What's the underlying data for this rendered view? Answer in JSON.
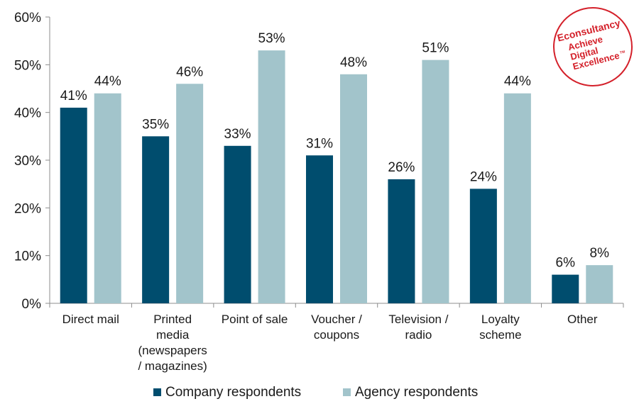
{
  "chart_data": {
    "type": "bar",
    "categories": [
      [
        "Direct mail"
      ],
      [
        "Printed",
        "media",
        "(newspapers",
        "/ magazines)"
      ],
      [
        "Point of sale"
      ],
      [
        "Voucher /",
        "coupons"
      ],
      [
        "Television /",
        "radio"
      ],
      [
        "Loyalty",
        "scheme"
      ],
      [
        "Other"
      ]
    ],
    "series": [
      {
        "name": "Company respondents",
        "color": "#004d6e",
        "values": [
          41,
          35,
          33,
          31,
          26,
          24,
          6
        ]
      },
      {
        "name": "Agency respondents",
        "color": "#a2c4cb",
        "values": [
          44,
          46,
          53,
          48,
          51,
          44,
          8
        ]
      }
    ],
    "ylim": [
      0,
      60
    ],
    "yticks": [
      0,
      10,
      20,
      30,
      40,
      50,
      60
    ],
    "ytick_labels": [
      "0%",
      "10%",
      "20%",
      "30%",
      "40%",
      "50%",
      "60%"
    ],
    "data_label_suffix": "%",
    "grid": false,
    "legend_position": "bottom-center"
  },
  "logo": {
    "brand": "Econsultancy",
    "tagline": [
      "Achieve",
      "Digital",
      "Excellence"
    ],
    "tm": "TM",
    "color": "#d4202a"
  }
}
